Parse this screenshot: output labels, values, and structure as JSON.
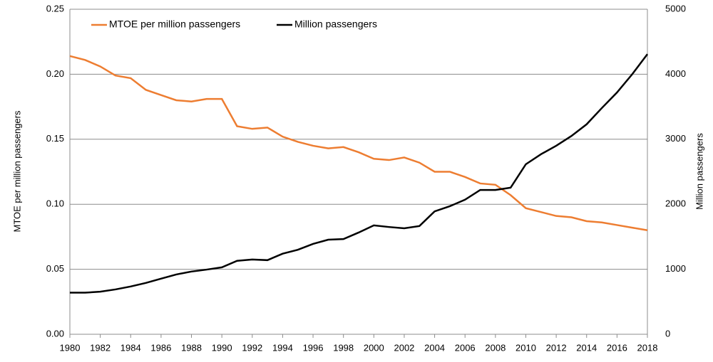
{
  "chart_data": {
    "type": "line",
    "y_label": "MTOE per million passengers",
    "y2_label": "Million passengers",
    "x": [
      1980,
      1981,
      1982,
      1983,
      1984,
      1985,
      1986,
      1987,
      1988,
      1989,
      1990,
      1991,
      1992,
      1993,
      1994,
      1995,
      1996,
      1997,
      1998,
      1999,
      2000,
      2001,
      2002,
      2003,
      2004,
      2005,
      2006,
      2007,
      2008,
      2009,
      2010,
      2011,
      2012,
      2013,
      2014,
      2015,
      2016,
      2017,
      2018
    ],
    "xlim": [
      1980,
      2018
    ],
    "xticks": [
      1980,
      1982,
      1984,
      1986,
      1988,
      1990,
      1992,
      1994,
      1996,
      1998,
      2000,
      2002,
      2004,
      2006,
      2008,
      2010,
      2012,
      2014,
      2016,
      2018
    ],
    "ylim": [
      0,
      0.25
    ],
    "yticks": [
      {
        "value": 0,
        "label": "0.00"
      },
      {
        "value": 0.05,
        "label": "0.05"
      },
      {
        "value": 0.1,
        "label": "0.10"
      },
      {
        "value": 0.15,
        "label": "0.15"
      },
      {
        "value": 0.2,
        "label": "0.20"
      },
      {
        "value": 0.25,
        "label": "0.25"
      }
    ],
    "y2lim": [
      0,
      5000
    ],
    "y2ticks": [
      0,
      1000,
      2000,
      3000,
      4000,
      5000
    ],
    "grid": true,
    "legend": "upper left",
    "series": [
      {
        "name": "MTOE per million passengers",
        "color": "#ed7d31",
        "values": [
          0.214,
          0.211,
          0.206,
          0.199,
          0.197,
          0.188,
          0.184,
          0.18,
          0.179,
          0.181,
          0.181,
          0.16,
          0.158,
          0.159,
          0.152,
          0.148,
          0.145,
          0.143,
          0.144,
          0.14,
          0.135,
          0.134,
          0.136,
          0.132,
          0.125,
          0.125,
          0.121,
          0.116,
          0.115,
          0.107,
          0.097,
          0.094,
          0.091,
          0.09,
          0.087,
          0.086,
          0.084,
          0.082,
          0.08
        ]
      },
      {
        "name": "Million passengers",
        "color": "#000000",
        "axis": "y2",
        "values": [
          640,
          640,
          655,
          690,
          735,
          790,
          855,
          920,
          965,
          995,
          1030,
          1130,
          1150,
          1140,
          1240,
          1300,
          1390,
          1455,
          1465,
          1565,
          1675,
          1650,
          1630,
          1665,
          1890,
          1970,
          2070,
          2220,
          2220,
          2255,
          2615,
          2770,
          2900,
          3050,
          3230,
          3480,
          3720,
          4000,
          4310
        ]
      }
    ]
  }
}
